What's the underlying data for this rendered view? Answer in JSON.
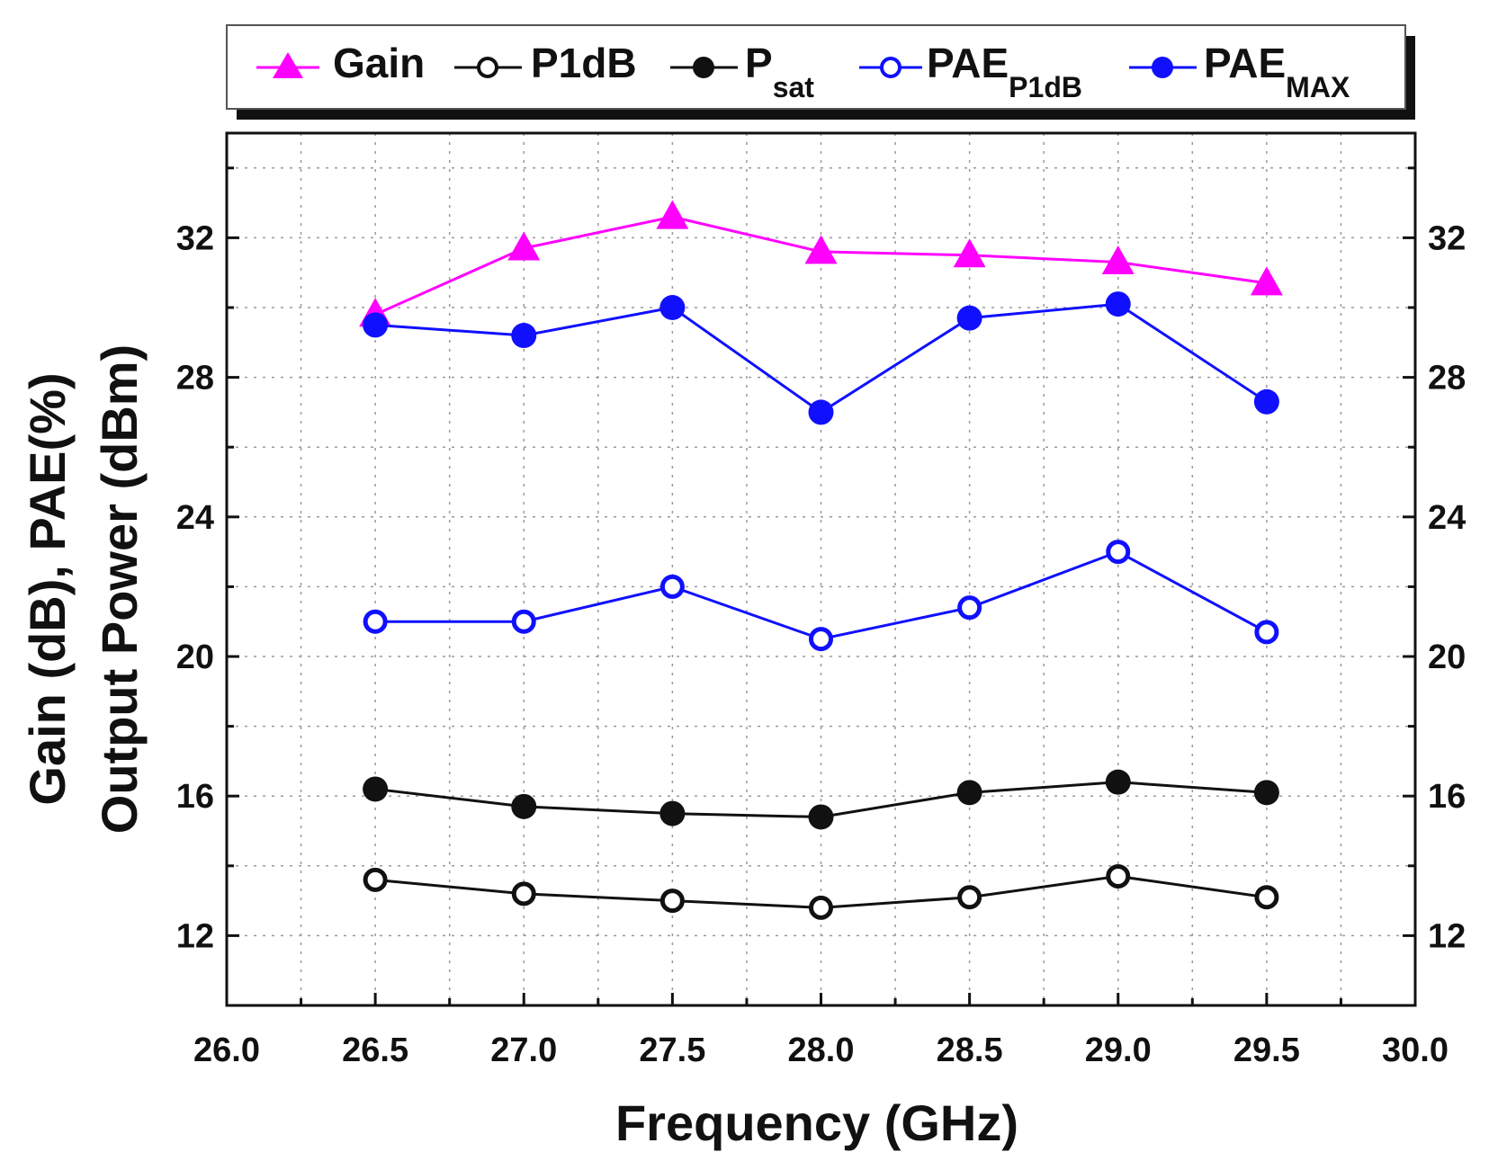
{
  "chart_data": {
    "type": "line",
    "xlabel": "Frequency (GHz)",
    "ylabel_line1": "Gain (dB), PAE(%)",
    "ylabel_line2": "Output Power (dBm)",
    "xlim": [
      26.0,
      30.0
    ],
    "ylim": [
      10,
      35
    ],
    "x_ticks": [
      "26.0",
      "26.5",
      "27.0",
      "27.5",
      "28.0",
      "28.5",
      "29.0",
      "29.5",
      "30.0"
    ],
    "y_ticks": [
      "12",
      "16",
      "20",
      "24",
      "28",
      "32"
    ],
    "y_ticks_right": [
      "12",
      "16",
      "20",
      "24",
      "28",
      "32"
    ],
    "grid": true,
    "legend_position": "top",
    "x": [
      26.5,
      27.0,
      27.5,
      28.0,
      28.5,
      29.0,
      29.5
    ],
    "series": [
      {
        "name": "Gain",
        "marker": "triangle",
        "filled": true,
        "color": "#ff00ff",
        "values": [
          29.8,
          31.7,
          32.6,
          31.6,
          31.5,
          31.3,
          30.7
        ]
      },
      {
        "name": "P1dB",
        "marker": "circle",
        "filled": false,
        "color": "#111111",
        "values": [
          13.6,
          13.2,
          13.0,
          12.8,
          13.1,
          13.7,
          13.1
        ]
      },
      {
        "name": "Psat",
        "marker": "circle",
        "filled": true,
        "color": "#111111",
        "values": [
          16.2,
          15.7,
          15.5,
          15.4,
          16.1,
          16.4,
          16.1
        ]
      },
      {
        "name": "PAEP1dB",
        "marker": "circle",
        "filled": false,
        "color": "#1010ff",
        "values": [
          21.0,
          21.0,
          22.0,
          20.5,
          21.4,
          23.0,
          20.7
        ]
      },
      {
        "name": "PAEMAX",
        "marker": "circle",
        "filled": true,
        "color": "#1010ff",
        "values": [
          29.5,
          29.2,
          30.0,
          27.0,
          29.7,
          30.1,
          27.3
        ]
      }
    ],
    "legend": [
      {
        "main": "Gain",
        "sub": ""
      },
      {
        "main": "P1dB",
        "sub": ""
      },
      {
        "main": "P",
        "sub": "sat"
      },
      {
        "main": "PAE",
        "sub": "P1dB"
      },
      {
        "main": "PAE",
        "sub": "MAX"
      }
    ]
  }
}
